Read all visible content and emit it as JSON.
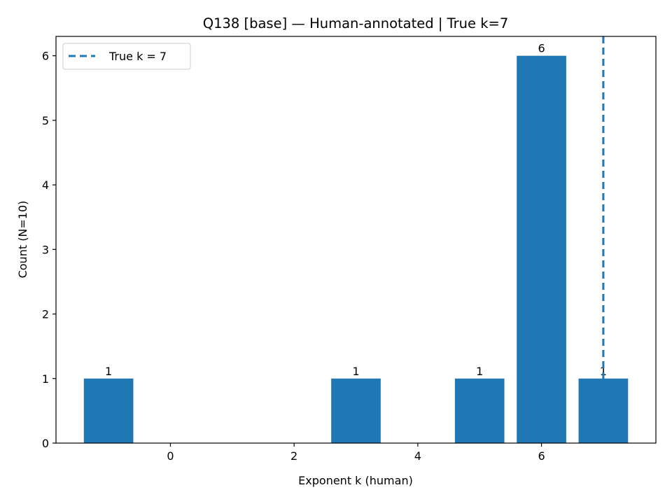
{
  "chart_data": {
    "type": "bar",
    "title": "Q138 [base] — Human-annotated | True k=7",
    "xlabel": "Exponent k (human)",
    "ylabel": "Count (N=10)",
    "x": [
      -1,
      3,
      5,
      6,
      7
    ],
    "values": [
      1,
      1,
      1,
      6,
      1
    ],
    "bar_labels": [
      "1",
      "1",
      "1",
      "6",
      "1"
    ],
    "xlim": [
      -1.85,
      7.85
    ],
    "ylim": [
      0,
      6.3
    ],
    "xticks": [
      0,
      2,
      4,
      6
    ],
    "yticks": [
      0,
      1,
      2,
      3,
      4,
      5,
      6
    ],
    "bar_color": "#1f77b4",
    "reference_line": {
      "x": 7,
      "label": "True k = 7",
      "color": "#1f77b4",
      "style": "dashed"
    },
    "legend": {
      "position": "top-left",
      "entries": [
        "True k = 7"
      ]
    },
    "grid": false
  }
}
